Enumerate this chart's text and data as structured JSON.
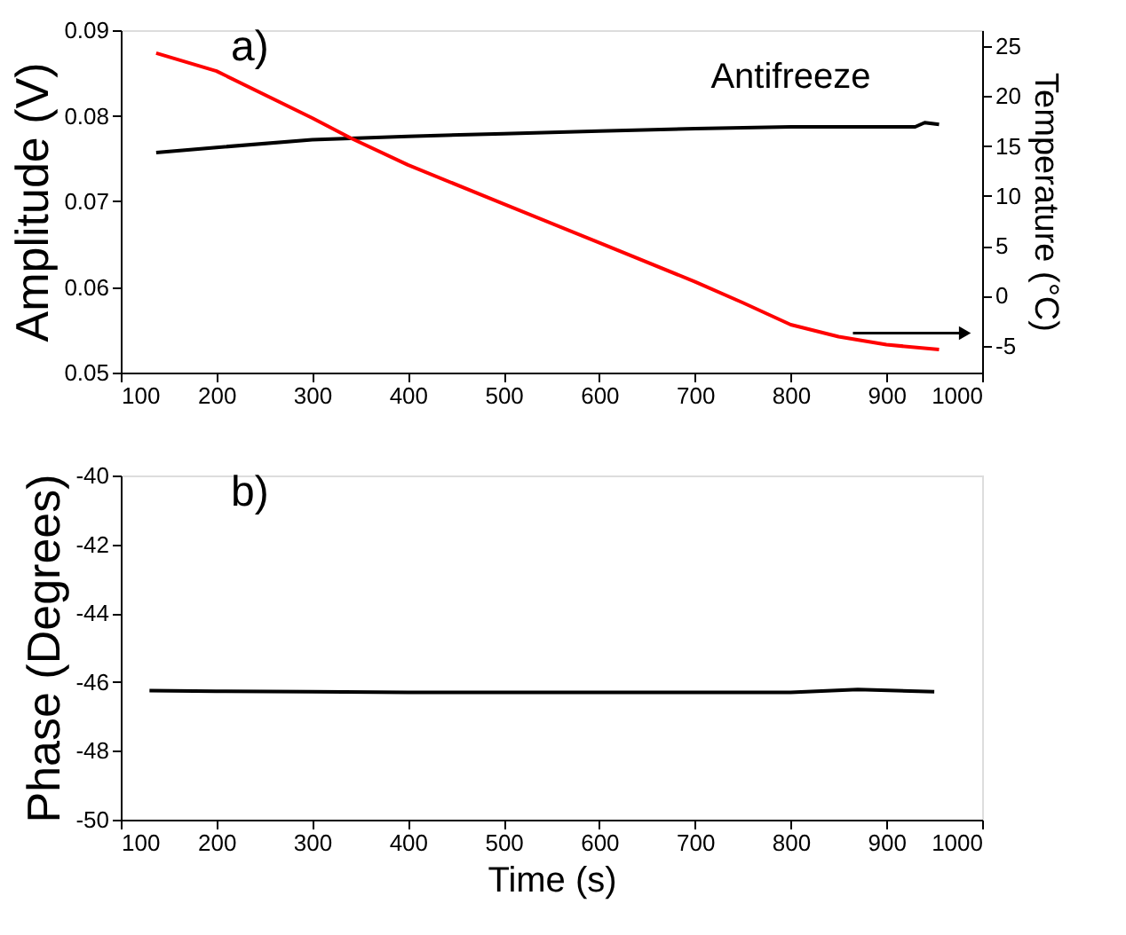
{
  "chart_data": [
    {
      "type": "line",
      "xlim": [
        100,
        1000
      ],
      "xticks": [
        100,
        200,
        300,
        400,
        500,
        600,
        700,
        800,
        900,
        1000
      ],
      "ylim": [
        0.05,
        0.09
      ],
      "yticks": [
        0.05,
        0.06,
        0.07,
        0.08,
        0.09
      ],
      "ylabel": "Amplitude (V)",
      "y2lim": [
        -7.7,
        26.6
      ],
      "y2ticks": [
        -5,
        0,
        5,
        10,
        15,
        20,
        25
      ],
      "y2label": "Temperature (°C)",
      "grid": false,
      "legend": false,
      "annotations": [
        "a)"
      ],
      "series": [
        {
          "name": "Antifreeze",
          "color": "#000000",
          "x": [
            137,
            200,
            300,
            400,
            500,
            600,
            700,
            800,
            900,
            930,
            940,
            955
          ],
          "values": [
            0.0757,
            0.0763,
            0.0772,
            0.0776,
            0.0779,
            0.0782,
            0.0785,
            0.0787,
            0.0787,
            0.0787,
            0.0792,
            0.079
          ]
        },
        {
          "color": "#ff0000",
          "axis": "y2",
          "x": [
            137,
            200,
            300,
            340,
            400,
            500,
            600,
            700,
            750,
            800,
            850,
            900,
            955
          ],
          "values": [
            24.3,
            22.5,
            17.8,
            15.8,
            13.1,
            9.2,
            5.3,
            1.4,
            -0.7,
            -2.9,
            -4.1,
            -4.9,
            -5.4
          ]
        }
      ]
    },
    {
      "type": "line",
      "xlim": [
        100,
        1000
      ],
      "xticks": [
        100,
        200,
        300,
        400,
        500,
        600,
        700,
        800,
        900,
        1000
      ],
      "ylim": [
        -50,
        -40
      ],
      "yticks": [
        -50,
        -48,
        -46,
        -44,
        -42,
        -40
      ],
      "xlabel": "Time (s)",
      "ylabel": "Phase (Degrees)",
      "grid": false,
      "legend": false,
      "annotations": [
        "b)"
      ],
      "series": [
        {
          "color": "#000000",
          "x": [
            130,
            200,
            300,
            400,
            500,
            600,
            700,
            800,
            870,
            950
          ],
          "values": [
            -46.25,
            -46.27,
            -46.28,
            -46.3,
            -46.3,
            -46.3,
            -46.3,
            -46.3,
            -46.22,
            -46.28
          ]
        }
      ]
    }
  ]
}
